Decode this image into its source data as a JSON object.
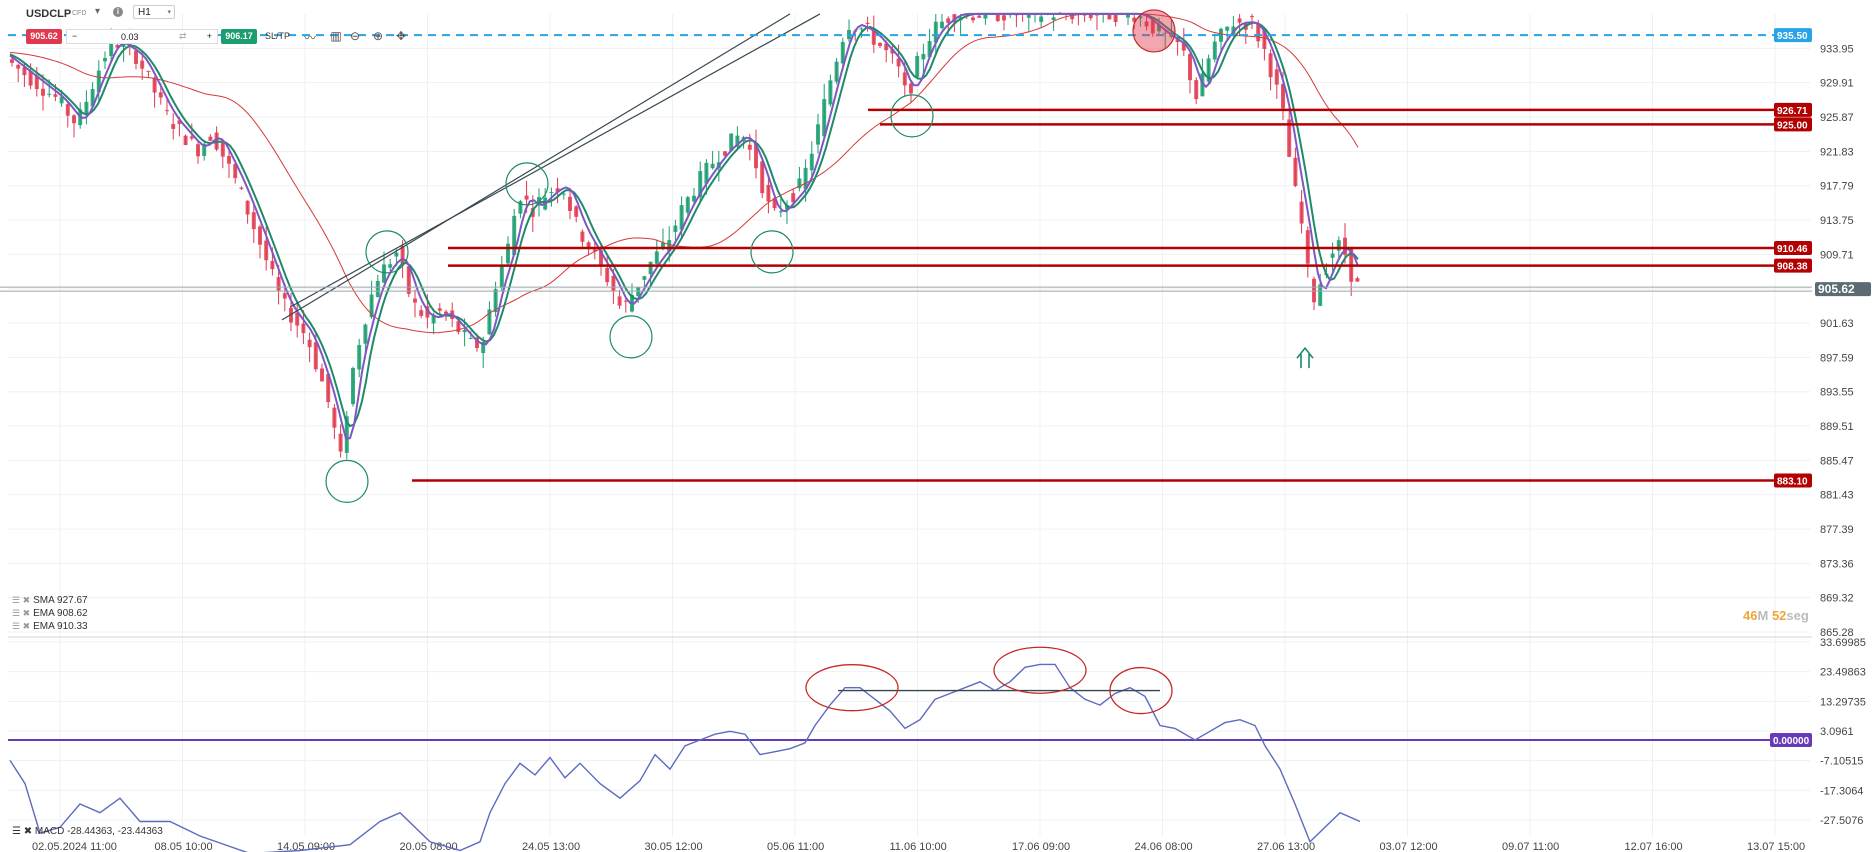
{
  "toolbar": {
    "symbol": "USDCLP",
    "instrument_type": "CFD",
    "timeframe": "H1",
    "sell_price": "905.62",
    "quantity": "0.03",
    "buy_price": "906.17",
    "sltp_label": "SL/TP",
    "minus_label": "−",
    "plus_label": "+",
    "info_label": "i"
  },
  "indicators": [
    {
      "label": "SMA 927.67"
    },
    {
      "label": "EMA 908.62"
    },
    {
      "label": "EMA 910.33"
    }
  ],
  "timer": {
    "minutes": "46",
    "m_unit": "M",
    "seconds": "52",
    "s_unit": "seg"
  },
  "colors": {
    "bull": "#1a9e6e",
    "bear": "#e0394f",
    "resistance": "#b30000",
    "sma": "#d63a3a",
    "ema_fast": "#7e57c2",
    "ema_slow": "#1e8a6a",
    "macd": "#5c6bc0",
    "macd_zero": "#673ab7",
    "dashed_level": "#29a3e8",
    "price_line": "#5c6b73"
  },
  "chart_data": [
    {
      "type": "candlestick",
      "symbol": "USDCLP",
      "timeframe": "H1",
      "ylim": [
        865.28,
        937.99
      ],
      "y_ticks": [
        933.95,
        929.91,
        925.87,
        921.83,
        917.79,
        913.75,
        909.71,
        905.67,
        901.63,
        897.59,
        893.55,
        889.51,
        885.47,
        881.43,
        877.39,
        873.36,
        869.32,
        865.28
      ],
      "x_ticks": [
        "02.05.2024 11:00",
        "08.05 10:00",
        "14.05 09:00",
        "20.05 08:00",
        "24.05 13:00",
        "30.05 12:00",
        "05.06 11:00",
        "11.06 10:00",
        "17.06 09:00",
        "24.06 08:00",
        "27.06 13:00",
        "03.07 12:00",
        "09.07 11:00",
        "12.07 16:00",
        "13.07 15:00"
      ],
      "price_path": [
        [
          0,
          933.5
        ],
        [
          60,
          928
        ],
        [
          80,
          925
        ],
        [
          100,
          931
        ],
        [
          115,
          935
        ],
        [
          140,
          933
        ],
        [
          170,
          926
        ],
        [
          200,
          922
        ],
        [
          215,
          924
        ],
        [
          240,
          918
        ],
        [
          260,
          912
        ],
        [
          285,
          904
        ],
        [
          310,
          900
        ],
        [
          330,
          893
        ],
        [
          345,
          885
        ],
        [
          352,
          894
        ],
        [
          365,
          901
        ],
        [
          380,
          907
        ],
        [
          400,
          910
        ],
        [
          415,
          904
        ],
        [
          430,
          902
        ],
        [
          445,
          903
        ],
        [
          460,
          901
        ],
        [
          475,
          899
        ],
        [
          485,
          899
        ],
        [
          500,
          907
        ],
        [
          510,
          910
        ],
        [
          522,
          917
        ],
        [
          535,
          915
        ],
        [
          550,
          917
        ],
        [
          565,
          918
        ],
        [
          580,
          913
        ],
        [
          600,
          909
        ],
        [
          615,
          906
        ],
        [
          625,
          903
        ],
        [
          640,
          906
        ],
        [
          655,
          909
        ],
        [
          670,
          911
        ],
        [
          685,
          915
        ],
        [
          700,
          918
        ],
        [
          712,
          920
        ],
        [
          725,
          922
        ],
        [
          745,
          924
        ],
        [
          760,
          920
        ],
        [
          775,
          914
        ],
        [
          790,
          916
        ],
        [
          805,
          918
        ],
        [
          820,
          924
        ],
        [
          835,
          931
        ],
        [
          850,
          937
        ],
        [
          870,
          936
        ],
        [
          885,
          934
        ],
        [
          900,
          932
        ],
        [
          910,
          928
        ],
        [
          920,
          932
        ],
        [
          935,
          936
        ],
        [
          955,
          938
        ],
        [
          1140,
          938
        ],
        [
          1160,
          936
        ],
        [
          1185,
          934
        ],
        [
          1200,
          928
        ],
        [
          1215,
          934
        ],
        [
          1235,
          937
        ],
        [
          1255,
          937
        ],
        [
          1270,
          933
        ],
        [
          1285,
          927
        ],
        [
          1295,
          919
        ],
        [
          1305,
          913
        ],
        [
          1315,
          904
        ],
        [
          1325,
          907
        ],
        [
          1335,
          910
        ],
        [
          1345,
          911
        ],
        [
          1358,
          906
        ]
      ],
      "current_price": 905.62,
      "dashed_level": 935.5,
      "resistance_levels": [
        926.71,
        925.0,
        910.46,
        908.38,
        883.1
      ],
      "price_tags": [
        "935.50",
        "926.71",
        "925.00",
        "910.46",
        "908.38",
        "905.62",
        "883.10"
      ],
      "marked_circles": [
        {
          "x": 387,
          "y": 910
        },
        {
          "x": 347,
          "y": 883
        },
        {
          "x": 527,
          "y": 918
        },
        {
          "x": 631,
          "y": 900
        },
        {
          "x": 772,
          "y": 910
        },
        {
          "x": 912,
          "y": 926
        },
        {
          "x": 1154,
          "y": 936
        }
      ],
      "trendline_channel": [
        [
          [
            282,
            902
          ],
          [
            790,
            938
          ]
        ],
        [
          [
            290,
            903.5
          ],
          [
            820,
            938
          ]
        ]
      ],
      "sma": {
        "name": "SMA",
        "value": 927.67
      },
      "ema_fast": {
        "name": "EMA",
        "value": 908.62
      },
      "ema_slow": {
        "name": "EMA",
        "value": 910.33
      },
      "arrow": {
        "x": 1305,
        "y": 897.5
      }
    },
    {
      "type": "line",
      "label": "MACD -28.44363, -23.44363",
      "ylim": [
        -33.0,
        33.69985
      ],
      "y_ticks": [
        33.69985,
        23.49863,
        13.29735,
        3.0961,
        -7.10515,
        -17.3064,
        -27.5076
      ],
      "zero_line": 0.0,
      "zero_tag": "0.00000",
      "values_path": [
        [
          10,
          -7
        ],
        [
          25,
          -15
        ],
        [
          40,
          -32
        ],
        [
          60,
          -30
        ],
        [
          80,
          -22
        ],
        [
          100,
          -25
        ],
        [
          120,
          -20
        ],
        [
          140,
          -28
        ],
        [
          170,
          -28
        ],
        [
          200,
          -33
        ],
        [
          250,
          -40
        ],
        [
          300,
          -38
        ],
        [
          350,
          -36
        ],
        [
          380,
          -28
        ],
        [
          400,
          -25
        ],
        [
          430,
          -35
        ],
        [
          460,
          -38
        ],
        [
          480,
          -35
        ],
        [
          490,
          -25
        ],
        [
          505,
          -15
        ],
        [
          520,
          -8
        ],
        [
          535,
          -12
        ],
        [
          550,
          -6
        ],
        [
          565,
          -13
        ],
        [
          580,
          -8
        ],
        [
          600,
          -15
        ],
        [
          620,
          -20
        ],
        [
          640,
          -14
        ],
        [
          655,
          -5
        ],
        [
          670,
          -10
        ],
        [
          685,
          -2
        ],
        [
          700,
          0
        ],
        [
          715,
          2
        ],
        [
          730,
          3
        ],
        [
          745,
          2
        ],
        [
          760,
          -5
        ],
        [
          775,
          -4
        ],
        [
          790,
          -3
        ],
        [
          805,
          -1
        ],
        [
          815,
          5
        ],
        [
          830,
          12
        ],
        [
          845,
          18
        ],
        [
          860,
          18
        ],
        [
          875,
          14
        ],
        [
          890,
          10
        ],
        [
          905,
          4
        ],
        [
          920,
          7
        ],
        [
          935,
          14
        ],
        [
          950,
          16
        ],
        [
          965,
          18
        ],
        [
          980,
          20
        ],
        [
          995,
          17
        ],
        [
          1010,
          20
        ],
        [
          1025,
          25
        ],
        [
          1040,
          26
        ],
        [
          1055,
          26
        ],
        [
          1070,
          18
        ],
        [
          1085,
          14
        ],
        [
          1100,
          12
        ],
        [
          1115,
          16
        ],
        [
          1130,
          18
        ],
        [
          1145,
          15
        ],
        [
          1160,
          5
        ],
        [
          1175,
          4
        ],
        [
          1195,
          0
        ],
        [
          1210,
          3
        ],
        [
          1225,
          6
        ],
        [
          1240,
          7
        ],
        [
          1255,
          5
        ],
        [
          1265,
          -2
        ],
        [
          1280,
          -10
        ],
        [
          1295,
          -22
        ],
        [
          1310,
          -35
        ],
        [
          1325,
          -30
        ],
        [
          1340,
          -25
        ],
        [
          1360,
          -28
        ]
      ],
      "highlight_ellipses": [
        {
          "x": 852,
          "y": 18
        },
        {
          "x": 1040,
          "y": 24
        },
        {
          "x": 1141,
          "y": 17
        }
      ],
      "divergence_line": [
        [
          838,
          17
        ],
        [
          1160,
          17
        ]
      ]
    }
  ]
}
